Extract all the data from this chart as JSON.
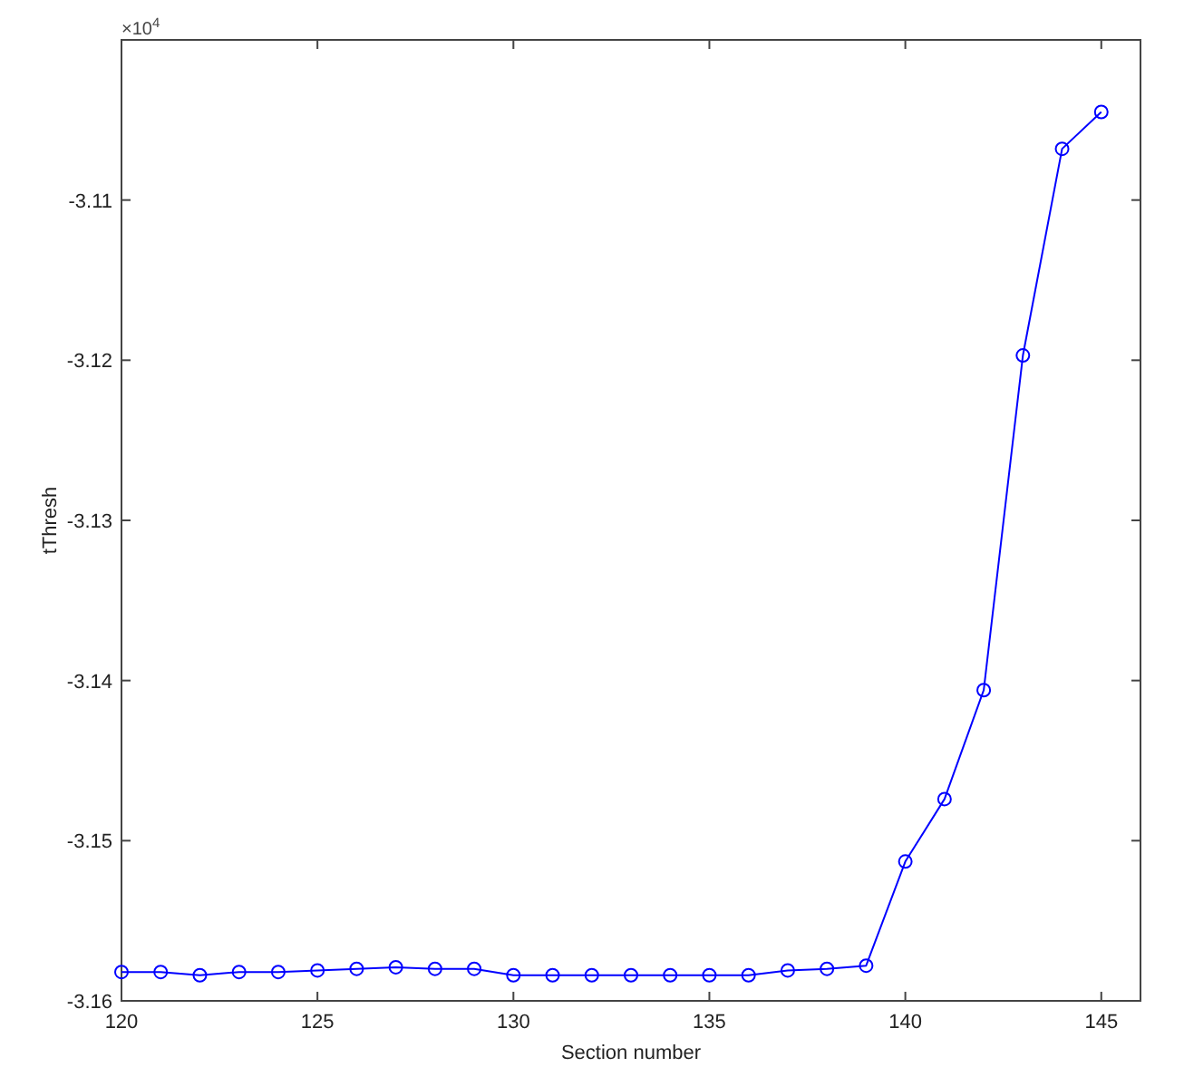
{
  "chart_data": {
    "type": "line",
    "xlabel": "Section number",
    "ylabel": "tThresh",
    "annotations": [
      "×10$^{4}$"
    ],
    "x": [
      120,
      121,
      122,
      123,
      124,
      125,
      126,
      127,
      128,
      129,
      130,
      131,
      132,
      133,
      134,
      135,
      136,
      137,
      138,
      139,
      140,
      141,
      142,
      143,
      144,
      145
    ],
    "series": [
      {
        "color": "#0000ff",
        "values": [
          -3.1582,
          -3.1582,
          -3.1584,
          -3.1582,
          -3.1582,
          -3.1581,
          -3.158,
          -3.1579,
          -3.158,
          -3.158,
          -3.1584,
          -3.1584,
          -3.1584,
          -3.1584,
          -3.1584,
          -3.1584,
          -3.1584,
          -3.1581,
          -3.158,
          -3.1578,
          -3.1513,
          -3.1474,
          -3.1406,
          -3.1197,
          -3.1068,
          -3.1045
        ]
      }
    ],
    "xlim": [
      120,
      146
    ],
    "xticks": [
      120,
      125,
      130,
      135,
      140,
      145
    ],
    "ylim": [
      -3.16,
      -3.1
    ],
    "yticks": [
      -3.16,
      -3.15,
      -3.14,
      -3.13,
      -3.12,
      -3.11
    ],
    "grid": false,
    "marker": "circle",
    "line_style": "solid"
  }
}
